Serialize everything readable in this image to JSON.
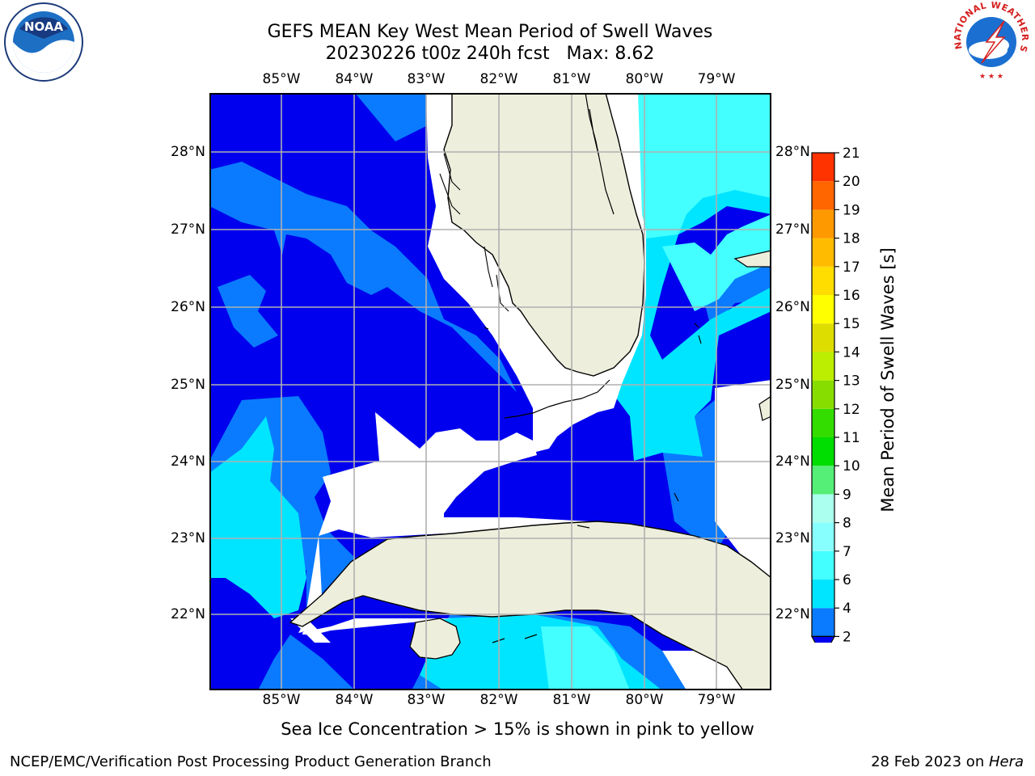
{
  "header": {
    "title_line1": "GEFS MEAN Key West Mean Period of Swell Waves",
    "title_line2": "20230226 t00z 240h fcst   Max: 8.62"
  },
  "map": {
    "lon_labels": [
      "85°W",
      "84°W",
      "83°W",
      "82°W",
      "81°W",
      "80°W",
      "79°W"
    ],
    "lat_labels": [
      "28°N",
      "27°N",
      "26°N",
      "25°N",
      "24°N",
      "23°N",
      "22°N"
    ],
    "land_color": "#eeeedd",
    "grid_color": "#b0b0b0"
  },
  "colorbar": {
    "label": "Mean Period of Swell Waves [s]",
    "ticks": [
      "2",
      "4",
      "6",
      "7",
      "8",
      "9",
      "10",
      "11",
      "12",
      "13",
      "14",
      "15",
      "16",
      "17",
      "18",
      "19",
      "20",
      "21"
    ],
    "colors": [
      "#0a7bff",
      "#00e5ff",
      "#44ffff",
      "#88ffff",
      "#aaffee",
      "#55ee77",
      "#00dd00",
      "#33dd00",
      "#88dd00",
      "#bbee00",
      "#dddd00",
      "#ffff00",
      "#ffdd00",
      "#ffbb00",
      "#ff9900",
      "#ff6600",
      "#ff3300",
      "#ff0000"
    ],
    "under_color": "#0000ee"
  },
  "note": "Sea Ice Concentration > 15% is shown in pink to yellow",
  "footer": {
    "left": "NCEP/EMC/Verification Post Processing Product Generation Branch",
    "date": "28 Feb 2023 on ",
    "machine": "Hera"
  },
  "logos": {
    "noaa": "NOAA",
    "nws_text": "NATIONAL WEATHER SERVICE"
  }
}
